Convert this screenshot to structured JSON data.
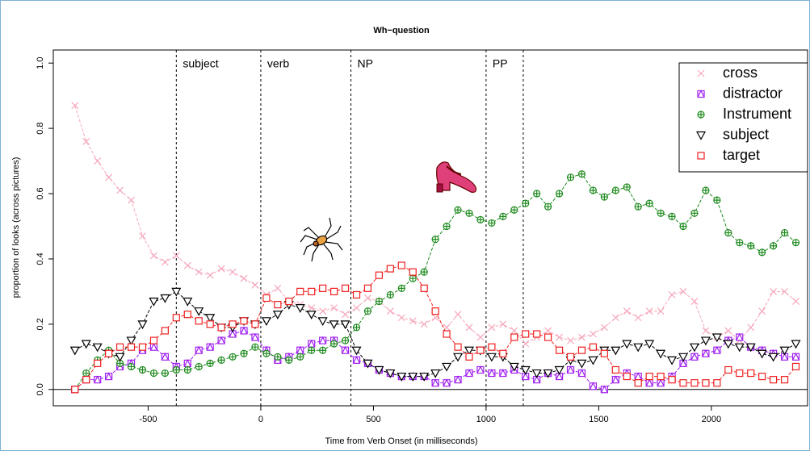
{
  "chart_data": {
    "type": "line",
    "title": "Wh−question",
    "x_label": "Time from Verb Onset (in milliseconds)",
    "y_label": "proportion of looks (across pictures)",
    "xlim": [
      -921,
      2427
    ],
    "ylim": [
      -0.05,
      1.04
    ],
    "xticks": [
      -500,
      0,
      500,
      1000,
      1500,
      2000
    ],
    "yticks": [
      {
        "value": 0,
        "label": "0.0"
      },
      {
        "value": 0.2,
        "label": "0.2"
      },
      {
        "value": 0.4,
        "label": "0.4"
      },
      {
        "value": 0.6,
        "label": "0.6"
      },
      {
        "value": 0.8,
        "label": "0.8"
      },
      {
        "value": 1,
        "label": "1.0"
      }
    ],
    "hline": 0,
    "vlines": [
      -375,
      0,
      400,
      1000,
      1165
    ],
    "annotations": [
      "subject",
      "verb",
      "NP",
      "PP"
    ],
    "legend_position": "top-right",
    "x": [
      -825,
      -775,
      -725,
      -675,
      -625,
      -575,
      -525,
      -475,
      -425,
      -375,
      -325,
      -275,
      -225,
      -175,
      -125,
      -75,
      -25,
      25,
      75,
      125,
      175,
      225,
      275,
      325,
      375,
      425,
      475,
      525,
      575,
      625,
      675,
      725,
      775,
      825,
      875,
      925,
      975,
      1025,
      1075,
      1125,
      1175,
      1225,
      1275,
      1325,
      1375,
      1425,
      1475,
      1525,
      1575,
      1625,
      1675,
      1725,
      1775,
      1825,
      1875,
      1925,
      1975,
      2025,
      2075,
      2125,
      2175,
      2225,
      2275,
      2325,
      2375
    ],
    "series": [
      {
        "name": "cross",
        "color": "#f5a8bb",
        "marker": "x",
        "values": [
          0.87,
          0.76,
          0.7,
          0.65,
          0.61,
          0.58,
          0.47,
          0.41,
          0.39,
          0.41,
          0.38,
          0.36,
          0.35,
          0.37,
          0.36,
          0.34,
          0.32,
          0.29,
          0.31,
          0.27,
          0.26,
          0.25,
          0.24,
          0.25,
          0.23,
          0.25,
          0.28,
          0.27,
          0.24,
          0.22,
          0.21,
          0.2,
          0.22,
          0.19,
          0.23,
          0.19,
          0.16,
          0.19,
          0.2,
          0.18,
          0.14,
          0.16,
          0.18,
          0.16,
          0.15,
          0.16,
          0.17,
          0.19,
          0.22,
          0.24,
          0.22,
          0.24,
          0.24,
          0.29,
          0.3,
          0.27,
          0.18,
          0.16,
          0.18,
          0.15,
          0.19,
          0.24,
          0.3,
          0.3,
          0.27
        ]
      },
      {
        "name": "distractor",
        "color": "#a020f0",
        "marker": "box-triangle",
        "values": [
          0.0,
          0.03,
          0.03,
          0.04,
          0.07,
          0.08,
          0.12,
          0.13,
          0.1,
          0.07,
          0.08,
          0.12,
          0.13,
          0.15,
          0.17,
          0.18,
          0.16,
          0.12,
          0.09,
          0.1,
          0.12,
          0.14,
          0.15,
          0.15,
          0.12,
          0.09,
          0.08,
          0.06,
          0.05,
          0.04,
          0.04,
          0.04,
          0.02,
          0.02,
          0.03,
          0.05,
          0.06,
          0.05,
          0.05,
          0.06,
          0.04,
          0.03,
          0.05,
          0.04,
          0.06,
          0.05,
          0.01,
          0.0,
          0.03,
          0.05,
          0.04,
          0.02,
          0.02,
          0.04,
          0.08,
          0.1,
          0.11,
          0.12,
          0.15,
          0.16,
          0.13,
          0.12,
          0.11,
          0.1,
          0.1
        ]
      },
      {
        "name": "Instrument",
        "color": "#1e8a1e",
        "marker": "circle-plus",
        "values": [
          0.0,
          0.05,
          0.09,
          0.12,
          0.08,
          0.07,
          0.06,
          0.05,
          0.05,
          0.06,
          0.06,
          0.07,
          0.08,
          0.09,
          0.1,
          0.11,
          0.13,
          0.11,
          0.1,
          0.09,
          0.1,
          0.12,
          0.12,
          0.14,
          0.15,
          0.19,
          0.24,
          0.27,
          0.29,
          0.31,
          0.34,
          0.36,
          0.46,
          0.5,
          0.55,
          0.54,
          0.52,
          0.51,
          0.53,
          0.55,
          0.57,
          0.6,
          0.56,
          0.6,
          0.65,
          0.66,
          0.61,
          0.59,
          0.61,
          0.62,
          0.56,
          0.57,
          0.54,
          0.53,
          0.5,
          0.54,
          0.61,
          0.58,
          0.48,
          0.45,
          0.44,
          0.42,
          0.44,
          0.48,
          0.45
        ]
      },
      {
        "name": "subject",
        "color": "#000000",
        "marker": "triangle-down",
        "values": [
          0.12,
          0.14,
          0.13,
          0.11,
          0.1,
          0.15,
          0.2,
          0.27,
          0.28,
          0.3,
          0.27,
          0.24,
          0.22,
          0.19,
          0.19,
          0.21,
          0.2,
          0.21,
          0.23,
          0.26,
          0.25,
          0.23,
          0.21,
          0.2,
          0.2,
          0.12,
          0.08,
          0.06,
          0.05,
          0.04,
          0.04,
          0.04,
          0.05,
          0.07,
          0.1,
          0.12,
          0.12,
          0.1,
          0.1,
          0.07,
          0.06,
          0.05,
          0.05,
          0.06,
          0.09,
          0.08,
          0.09,
          0.12,
          0.12,
          0.14,
          0.13,
          0.14,
          0.11,
          0.09,
          0.1,
          0.13,
          0.15,
          0.16,
          0.14,
          0.13,
          0.13,
          0.11,
          0.1,
          0.12,
          0.14
        ]
      },
      {
        "name": "target",
        "color": "#f02020",
        "marker": "square",
        "values": [
          0.0,
          0.03,
          0.08,
          0.11,
          0.13,
          0.13,
          0.13,
          0.15,
          0.18,
          0.22,
          0.23,
          0.21,
          0.2,
          0.19,
          0.2,
          0.21,
          0.2,
          0.28,
          0.26,
          0.27,
          0.3,
          0.3,
          0.31,
          0.3,
          0.31,
          0.29,
          0.31,
          0.35,
          0.37,
          0.38,
          0.36,
          0.31,
          0.24,
          0.17,
          0.13,
          0.1,
          0.12,
          0.13,
          0.11,
          0.16,
          0.17,
          0.17,
          0.16,
          0.12,
          0.1,
          0.12,
          0.13,
          0.11,
          0.06,
          0.04,
          0.02,
          0.04,
          0.04,
          0.03,
          0.02,
          0.02,
          0.02,
          0.02,
          0.06,
          0.05,
          0.05,
          0.04,
          0.03,
          0.03,
          0.07
        ]
      }
    ]
  }
}
